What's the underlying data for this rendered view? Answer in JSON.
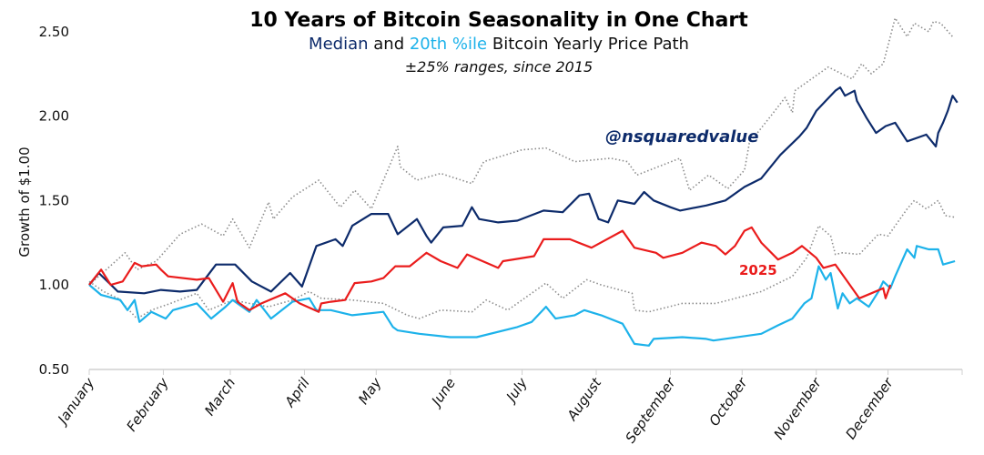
{
  "chart_data": {
    "type": "line",
    "title": "10 Years of Bitcoin Seasonality in One Chart",
    "subtitle": {
      "part1": "Median",
      "part2": " and ",
      "part3": "20th %ile",
      "part4": " Bitcoin Yearly Price Path"
    },
    "subtitle2": "±25% ranges, since 2015",
    "ylabel": "Growth of $1.00",
    "xlabel": "",
    "ylim": [
      0.5,
      2.6
    ],
    "yticks": [
      "0.50",
      "1.00",
      "1.50",
      "2.00",
      "2.50"
    ],
    "ytick_values": [
      0.5,
      1.0,
      1.5,
      2.0,
      2.5
    ],
    "xticks": [
      "January",
      "February",
      "March",
      "April",
      "May",
      "June",
      "July",
      "August",
      "September",
      "October",
      "November",
      "December"
    ],
    "grid": false,
    "watermark": "@nsquaredvalue",
    "annotation_2025": "2025",
    "colors": {
      "median": "#0d2b6b",
      "p20": "#1db2ea",
      "y2025": "#ea1c1c",
      "range": "#8c8c8c"
    },
    "series": [
      {
        "key": "upper",
        "style": "dotted",
        "x": [
          "01-01",
          "01-16",
          "01-21",
          "01-29",
          "02-08",
          "02-17",
          "02-26",
          "03-02",
          "03-09",
          "03-17",
          "03-19",
          "03-27",
          "04-07",
          "04-16",
          "04-22",
          "04-29",
          "05-10",
          "05-11",
          "05-18",
          "05-28",
          "06-10",
          "06-15",
          "07-01",
          "07-11",
          "07-23",
          "08-07",
          "08-14",
          "08-18",
          "09-05",
          "09-09",
          "09-17",
          "09-25",
          "10-02",
          "10-04",
          "10-13",
          "10-19",
          "10-22",
          "10-23",
          "11-06",
          "11-16",
          "11-20",
          "11-24",
          "11-29",
          "12-04",
          "12-09",
          "12-12",
          "12-18",
          "12-20",
          "12-23",
          "12-28"
        ],
        "y": [
          1.0,
          1.19,
          1.09,
          1.14,
          1.3,
          1.36,
          1.29,
          1.39,
          1.22,
          1.49,
          1.39,
          1.52,
          1.62,
          1.46,
          1.56,
          1.45,
          1.82,
          1.7,
          1.62,
          1.66,
          1.6,
          1.73,
          1.8,
          1.81,
          1.73,
          1.75,
          1.73,
          1.65,
          1.75,
          1.56,
          1.65,
          1.57,
          1.68,
          1.84,
          2.0,
          2.11,
          2.02,
          2.15,
          2.29,
          2.22,
          2.31,
          2.25,
          2.31,
          2.58,
          2.47,
          2.55,
          2.5,
          2.56,
          2.55,
          2.47
        ]
      },
      {
        "key": "lower",
        "style": "dotted",
        "x": [
          "01-01",
          "01-07",
          "01-13",
          "01-21",
          "01-27",
          "02-04",
          "02-15",
          "02-20",
          "03-02",
          "03-09",
          "03-17",
          "03-27",
          "04-03",
          "04-08",
          "04-21",
          "05-04",
          "05-14",
          "05-19",
          "05-28",
          "06-10",
          "06-16",
          "06-25",
          "07-11",
          "07-18",
          "07-28",
          "08-03",
          "08-16",
          "08-17",
          "08-23",
          "09-06",
          "09-17",
          "09-20",
          "10-09",
          "10-22",
          "10-28",
          "11-02",
          "11-07",
          "11-09",
          "11-12",
          "11-19",
          "11-27",
          "12-01",
          "12-09",
          "12-12",
          "12-17",
          "12-22",
          "12-25",
          "12-29"
        ],
        "y": [
          1.02,
          0.96,
          0.92,
          0.8,
          0.85,
          0.89,
          0.95,
          0.85,
          0.91,
          0.89,
          0.87,
          0.91,
          0.96,
          0.92,
          0.91,
          0.89,
          0.82,
          0.8,
          0.85,
          0.84,
          0.91,
          0.85,
          1.01,
          0.92,
          1.03,
          1.0,
          0.95,
          0.85,
          0.84,
          0.89,
          0.89,
          0.89,
          0.96,
          1.05,
          1.16,
          1.35,
          1.29,
          1.18,
          1.19,
          1.18,
          1.3,
          1.29,
          1.45,
          1.5,
          1.45,
          1.5,
          1.41,
          1.4
        ]
      },
      {
        "key": "p20",
        "name": "20th %ile",
        "style": "solid",
        "x": [
          "01-01",
          "01-06",
          "01-14",
          "01-17",
          "01-20",
          "01-22",
          "01-27",
          "02-02",
          "02-05",
          "02-15",
          "02-21",
          "02-27",
          "03-02",
          "03-09",
          "03-12",
          "03-18",
          "03-27",
          "04-03",
          "04-06",
          "04-12",
          "04-21",
          "05-04",
          "05-08",
          "05-10",
          "05-19",
          "06-01",
          "06-12",
          "06-29",
          "07-05",
          "07-11",
          "07-15",
          "07-23",
          "07-27",
          "08-03",
          "08-12",
          "08-17",
          "08-23",
          "08-25",
          "09-06",
          "09-16",
          "09-19",
          "10-09",
          "10-16",
          "10-22",
          "10-27",
          "10-30",
          "11-02",
          "11-05",
          "11-07",
          "11-10",
          "11-12",
          "11-15",
          "11-18",
          "11-23",
          "11-27",
          "11-29",
          "12-02",
          "12-04",
          "12-09",
          "12-12",
          "12-13",
          "12-18",
          "12-22",
          "12-24",
          "12-29"
        ],
        "y": [
          1.0,
          0.94,
          0.91,
          0.85,
          0.91,
          0.78,
          0.84,
          0.8,
          0.85,
          0.89,
          0.8,
          0.87,
          0.91,
          0.84,
          0.91,
          0.8,
          0.9,
          0.92,
          0.85,
          0.85,
          0.82,
          0.84,
          0.75,
          0.73,
          0.71,
          0.69,
          0.69,
          0.75,
          0.78,
          0.87,
          0.8,
          0.82,
          0.85,
          0.82,
          0.77,
          0.65,
          0.64,
          0.68,
          0.69,
          0.68,
          0.67,
          0.71,
          0.76,
          0.8,
          0.89,
          0.92,
          1.11,
          1.03,
          1.07,
          0.86,
          0.95,
          0.89,
          0.92,
          0.87,
          0.96,
          1.02,
          0.98,
          1.05,
          1.21,
          1.16,
          1.23,
          1.21,
          1.21,
          1.12,
          1.14
        ]
      },
      {
        "key": "median",
        "name": "Median",
        "style": "solid",
        "x": [
          "01-01",
          "01-05",
          "01-13",
          "01-24",
          "01-31",
          "02-08",
          "02-15",
          "02-23",
          "03-03",
          "03-10",
          "03-18",
          "03-26",
          "03-31",
          "04-06",
          "04-14",
          "04-17",
          "04-21",
          "04-29",
          "05-06",
          "05-10",
          "05-18",
          "05-22",
          "05-24",
          "05-29",
          "06-06",
          "06-10",
          "06-13",
          "06-21",
          "06-29",
          "07-10",
          "07-18",
          "07-25",
          "07-29",
          "08-02",
          "08-06",
          "08-10",
          "08-17",
          "08-21",
          "08-25",
          "09-01",
          "09-05",
          "09-16",
          "09-24",
          "10-02",
          "10-09",
          "10-17",
          "10-25",
          "10-28",
          "11-01",
          "11-05",
          "11-09",
          "11-11",
          "11-13",
          "11-17",
          "11-18",
          "11-22",
          "11-26",
          "11-30",
          "12-04",
          "12-09",
          "12-17",
          "12-21",
          "12-22",
          "12-24",
          "12-26",
          "12-28",
          "12-30"
        ],
        "y": [
          1.0,
          1.07,
          0.96,
          0.95,
          0.97,
          0.96,
          0.97,
          1.12,
          1.12,
          1.02,
          0.96,
          1.07,
          0.99,
          1.23,
          1.27,
          1.23,
          1.35,
          1.42,
          1.42,
          1.3,
          1.39,
          1.29,
          1.25,
          1.34,
          1.35,
          1.46,
          1.39,
          1.37,
          1.38,
          1.44,
          1.43,
          1.53,
          1.54,
          1.39,
          1.37,
          1.5,
          1.48,
          1.55,
          1.5,
          1.46,
          1.44,
          1.47,
          1.5,
          1.58,
          1.63,
          1.77,
          1.88,
          1.93,
          2.03,
          2.09,
          2.15,
          2.17,
          2.12,
          2.15,
          2.09,
          1.99,
          1.9,
          1.94,
          1.96,
          1.85,
          1.89,
          1.82,
          1.9,
          1.96,
          2.03,
          2.12,
          2.08
        ]
      },
      {
        "key": "y2025",
        "name": "2025",
        "style": "solid",
        "x": [
          "01-01",
          "01-06",
          "01-10",
          "01-15",
          "01-20",
          "01-23",
          "01-29",
          "01-31",
          "02-03",
          "02-15",
          "02-20",
          "02-26",
          "03-02",
          "03-04",
          "03-09",
          "03-14",
          "03-24",
          "03-30",
          "04-07",
          "04-08",
          "04-12",
          "04-18",
          "04-22",
          "04-29",
          "05-04",
          "05-09",
          "05-15",
          "05-22",
          "05-28",
          "06-04",
          "06-08",
          "06-21",
          "06-23",
          "07-06",
          "07-10",
          "07-21",
          "07-30",
          "08-12",
          "08-17",
          "08-26",
          "08-29",
          "09-06",
          "09-14",
          "09-20",
          "09-24",
          "09-28",
          "10-02",
          "10-05",
          "10-09",
          "10-16",
          "10-22",
          "10-26",
          "11-01",
          "11-04",
          "11-09",
          "11-14",
          "11-19",
          "11-24",
          "11-29",
          "11-30",
          "12-02"
        ],
        "y": [
          1.0,
          1.09,
          1.0,
          1.02,
          1.13,
          1.11,
          1.12,
          1.09,
          1.05,
          1.03,
          1.04,
          0.9,
          1.01,
          0.9,
          0.85,
          0.89,
          0.95,
          0.89,
          0.84,
          0.89,
          0.9,
          0.91,
          1.01,
          1.02,
          1.04,
          1.11,
          1.11,
          1.19,
          1.14,
          1.1,
          1.18,
          1.1,
          1.14,
          1.17,
          1.27,
          1.27,
          1.22,
          1.32,
          1.22,
          1.19,
          1.16,
          1.19,
          1.25,
          1.23,
          1.18,
          1.23,
          1.32,
          1.34,
          1.25,
          1.15,
          1.19,
          1.23,
          1.16,
          1.1,
          1.12,
          1.02,
          0.92,
          0.95,
          0.98,
          0.92,
          1.0
        ]
      }
    ]
  }
}
